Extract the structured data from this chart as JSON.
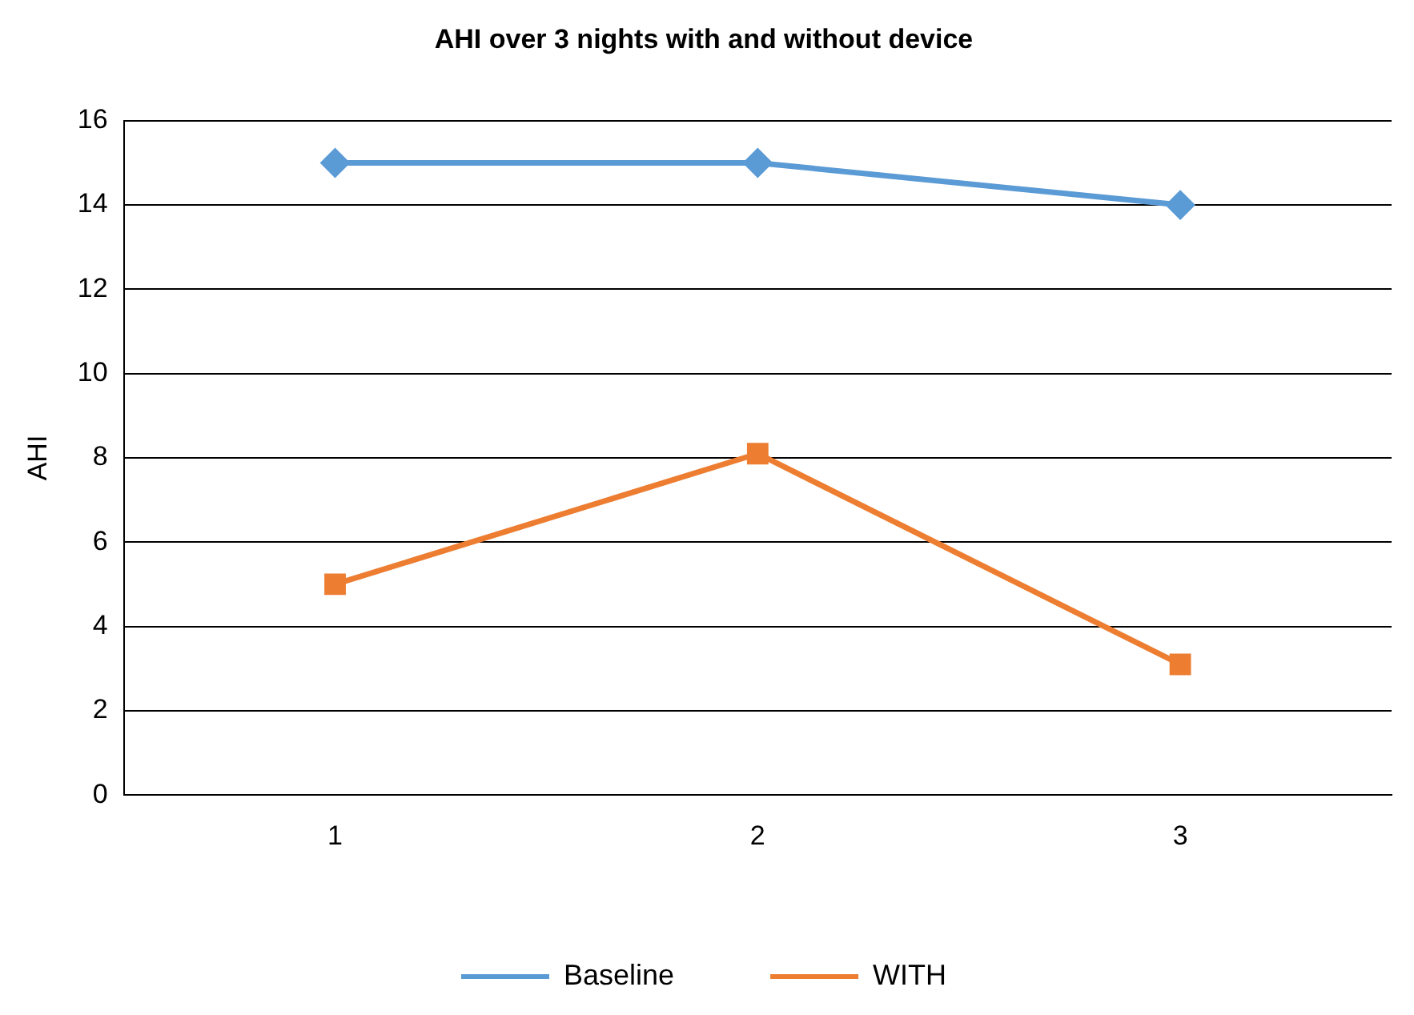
{
  "chart_data": {
    "type": "line",
    "title": "AHI over 3 nights with and without device",
    "ylabel": "AHI",
    "categories": [
      "1",
      "2",
      "3"
    ],
    "series": [
      {
        "name": "Baseline",
        "color": "#5b9bd5",
        "values": [
          15,
          15,
          14
        ],
        "marker": "diamond"
      },
      {
        "name": "WITH",
        "color": "#ed7d31",
        "values": [
          5,
          8.1,
          3.1
        ],
        "marker": "square"
      }
    ],
    "ylim": [
      0,
      16
    ],
    "yticks": [
      0,
      2,
      4,
      6,
      8,
      10,
      12,
      14,
      16
    ],
    "grid": "y",
    "legend": "bottom",
    "line_style": "solid"
  }
}
